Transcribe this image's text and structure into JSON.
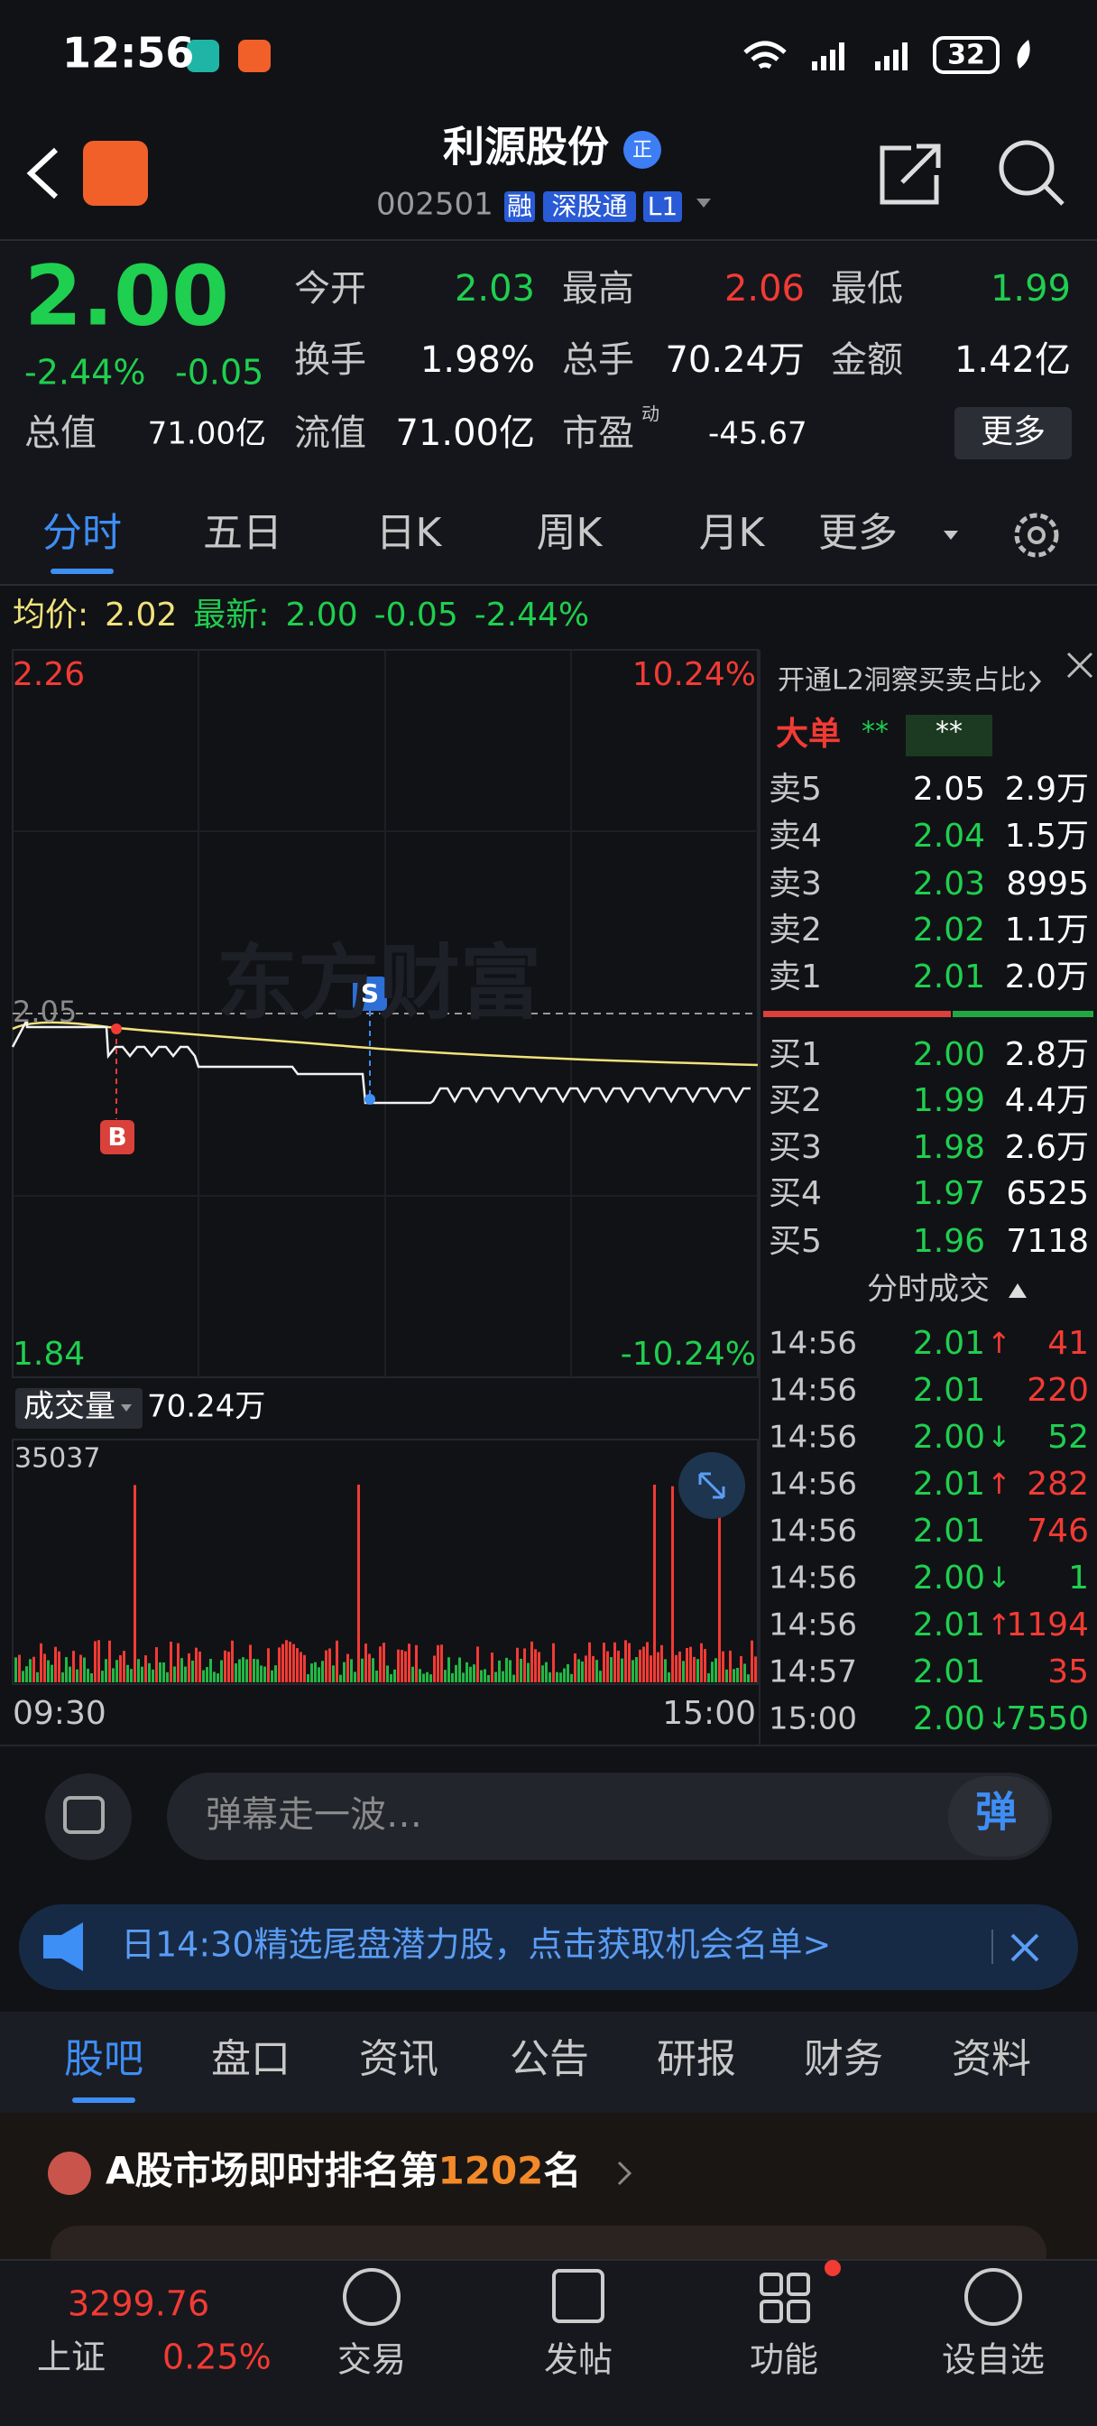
{
  "status_bar": {
    "time": "12:56",
    "battery": "32"
  },
  "header": {
    "title": "利源股份",
    "badge": "正",
    "code": "002501",
    "tags": [
      "融",
      "深股通",
      "L1"
    ]
  },
  "quote": {
    "price": "2.00",
    "change_pct": "-2.44%",
    "change": "-0.05",
    "more": "更多",
    "fields": [
      {
        "label": "今开",
        "value": "2.03",
        "color": "#1fcf4f"
      },
      {
        "label": "最高",
        "value": "2.06",
        "color": "#f23b34"
      },
      {
        "label": "最低",
        "value": "1.99",
        "color": "#1fcf4f"
      },
      {
        "label": "换手",
        "value": "1.98%",
        "color": "#ffffff"
      },
      {
        "label": "总手",
        "value": "70.24万",
        "color": "#ffffff"
      },
      {
        "label": "金额",
        "value": "1.42亿",
        "color": "#ffffff"
      },
      {
        "label": "总值",
        "value": "71.00亿",
        "color": "#ffffff"
      },
      {
        "label": "流值",
        "value": "71.00亿",
        "color": "#ffffff"
      },
      {
        "label": "市盈",
        "superscript": "动",
        "value": "-45.67",
        "color": "#ffffff"
      }
    ]
  },
  "tabs": [
    "分时",
    "五日",
    "日K",
    "周K",
    "月K",
    "更多"
  ],
  "chart": {
    "avg_label": "均价:",
    "avg": "2.02",
    "latest_label": "最新:",
    "latest": "2.00",
    "change": "-0.05",
    "change_pct": "-2.44%",
    "y_max": "2.26",
    "y_max_pct": "10.24%",
    "y_min": "1.84",
    "y_min_pct": "-10.24%",
    "prev_close": "2.05",
    "buy_marker": "B",
    "sell_marker": "S",
    "watermark": "东方财富"
  },
  "order_book": {
    "promo": "开通L2洞察买卖占比",
    "big_order_label": "大单",
    "big_order_values": [
      "**",
      "**"
    ],
    "asks": [
      {
        "label": "卖5",
        "price": "2.05",
        "volume": "2.9万",
        "color": "#ffffff"
      },
      {
        "label": "卖4",
        "price": "2.04",
        "volume": "1.5万",
        "color": "#1fcf4f"
      },
      {
        "label": "卖3",
        "price": "2.03",
        "volume": "8995",
        "color": "#1fcf4f"
      },
      {
        "label": "卖2",
        "price": "2.02",
        "volume": "1.1万",
        "color": "#1fcf4f"
      },
      {
        "label": "卖1",
        "price": "2.01",
        "volume": "2.0万",
        "color": "#1fcf4f"
      }
    ],
    "bids": [
      {
        "label": "买1",
        "price": "2.00",
        "volume": "2.8万",
        "color": "#1fcf4f"
      },
      {
        "label": "买2",
        "price": "1.99",
        "volume": "4.4万",
        "color": "#1fcf4f"
      },
      {
        "label": "买3",
        "price": "1.98",
        "volume": "2.6万",
        "color": "#1fcf4f"
      },
      {
        "label": "买4",
        "price": "1.97",
        "volume": "6525",
        "color": "#1fcf4f"
      },
      {
        "label": "买5",
        "price": "1.96",
        "volume": "7118",
        "color": "#1fcf4f"
      }
    ]
  },
  "trades": {
    "title": "分时成交",
    "rows": [
      {
        "time": "14:56",
        "price": "2.01",
        "arrow": "↑",
        "volume": "41",
        "color": "#f23b34"
      },
      {
        "time": "14:56",
        "price": "2.01",
        "volume": "220",
        "color": "#f23b34"
      },
      {
        "time": "14:56",
        "price": "2.00",
        "arrow": "↓",
        "volume": "52",
        "color": "#1fcf4f"
      },
      {
        "time": "14:56",
        "price": "2.01",
        "arrow": "↑",
        "volume": "282",
        "color": "#f23b34"
      },
      {
        "time": "14:56",
        "price": "2.01",
        "volume": "746",
        "color": "#f23b34"
      },
      {
        "time": "14:56",
        "price": "2.00",
        "arrow": "↓",
        "volume": "1",
        "color": "#1fcf4f"
      },
      {
        "time": "14:56",
        "price": "2.01",
        "arrow": "↑",
        "volume": "1194",
        "color": "#f23b34"
      },
      {
        "time": "14:57",
        "price": "2.01",
        "volume": "35",
        "color": "#f23b34"
      },
      {
        "time": "15:00",
        "price": "2.00",
        "arrow": "↓",
        "volume": "7550",
        "color": "#1fcf4f"
      }
    ]
  },
  "volume": {
    "label": "成交量",
    "total": "70.24万",
    "max": "35037",
    "start": "09:30",
    "end": "15:00"
  },
  "danmu": {
    "placeholder": "弹幕走一波…",
    "button": "弹"
  },
  "banner": {
    "text": "日14:30精选尾盘潜力股，点击获取机会名单>"
  },
  "bottom_tabs": [
    "股吧",
    "盘口",
    "资讯",
    "公告",
    "研报",
    "财务",
    "资料"
  ],
  "ranking": {
    "prefix": "A股市场即时排名第",
    "rank": "1202",
    "suffix": "名"
  },
  "nav": {
    "index_value": "3299.76",
    "index_name": "上证",
    "index_change": "0.25%",
    "items": [
      "交易",
      "发帖",
      "功能",
      "设自选"
    ]
  }
}
